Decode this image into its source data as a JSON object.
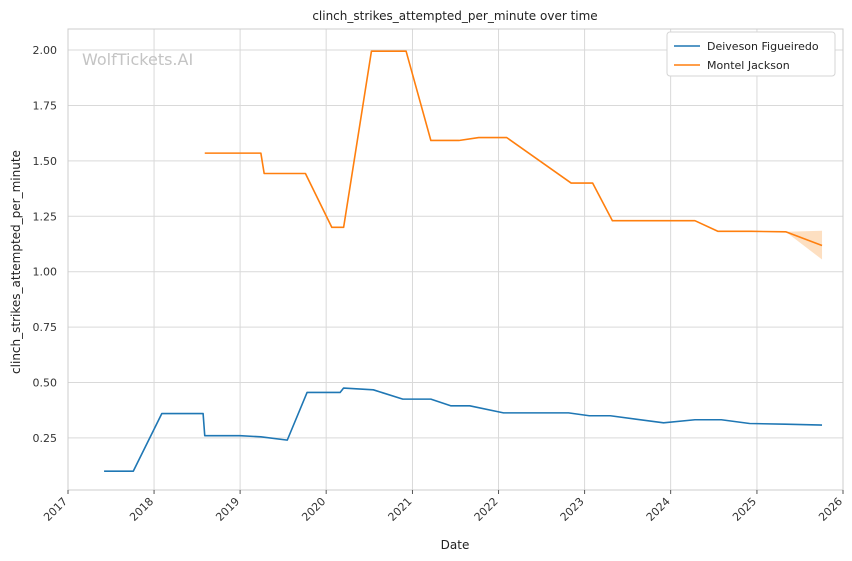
{
  "chart_data": {
    "type": "line",
    "title": "clinch_strikes_attempted_per_minute over time",
    "xlabel": "Date",
    "ylabel": "clinch_strikes_attempted_per_minute",
    "watermark": "WolfTickets.AI",
    "x_axis_kind": "date",
    "xlim": [
      "2017-01-01",
      "2026-01-01"
    ],
    "ylim": [
      0.015,
      2.095
    ],
    "x_ticks": [
      "2017",
      "2018",
      "2019",
      "2020",
      "2021",
      "2022",
      "2023",
      "2024",
      "2025",
      "2026"
    ],
    "y_ticks": [
      0.25,
      0.5,
      0.75,
      1.0,
      1.25,
      1.5,
      1.75,
      2.0
    ],
    "y_tick_labels": [
      "0.25",
      "0.50",
      "0.75",
      "1.00",
      "1.25",
      "1.50",
      "1.75",
      "2.00"
    ],
    "grid": true,
    "legend_position": "top-right",
    "series": [
      {
        "name": "Deiveson Figueiredo",
        "color": "#1f77b4",
        "points": [
          [
            "2017-06-03",
            0.1
          ],
          [
            "2017-10-05",
            0.1
          ],
          [
            "2018-02-03",
            0.36
          ],
          [
            "2018-07-28",
            0.36
          ],
          [
            "2018-08-04",
            0.26
          ],
          [
            "2019-01-01",
            0.26
          ],
          [
            "2019-03-30",
            0.255
          ],
          [
            "2019-07-20",
            0.24
          ],
          [
            "2019-10-12",
            0.455
          ],
          [
            "2020-02-29",
            0.455
          ],
          [
            "2020-03-15",
            0.475
          ],
          [
            "2020-07-19",
            0.467
          ],
          [
            "2020-11-21",
            0.425
          ],
          [
            "2021-03-20",
            0.425
          ],
          [
            "2021-06-12",
            0.395
          ],
          [
            "2021-09-01",
            0.395
          ],
          [
            "2022-01-22",
            0.363
          ],
          [
            "2022-10-25",
            0.363
          ],
          [
            "2023-01-21",
            0.35
          ],
          [
            "2023-04-20",
            0.35
          ],
          [
            "2023-12-02",
            0.318
          ],
          [
            "2024-04-13",
            0.332
          ],
          [
            "2024-08-03",
            0.332
          ],
          [
            "2024-12-01",
            0.315
          ],
          [
            "2025-05-01",
            0.312
          ],
          [
            "2025-10-04",
            0.308
          ]
        ]
      },
      {
        "name": "Montel Jackson",
        "color": "#ff7f0e",
        "band_color": "#fdd7b1",
        "points": [
          [
            "2018-08-04",
            1.535
          ],
          [
            "2019-03-30",
            1.535
          ],
          [
            "2019-04-13",
            1.443
          ],
          [
            "2019-10-05",
            1.443
          ],
          [
            "2020-01-25",
            1.2
          ],
          [
            "2020-03-15",
            1.2
          ],
          [
            "2020-07-11",
            1.995
          ],
          [
            "2020-12-05",
            1.995
          ],
          [
            "2021-03-20",
            1.592
          ],
          [
            "2021-07-17",
            1.592
          ],
          [
            "2021-10-09",
            1.605
          ],
          [
            "2022-02-05",
            1.605
          ],
          [
            "2022-11-05",
            1.4
          ],
          [
            "2023-02-04",
            1.4
          ],
          [
            "2023-04-29",
            1.23
          ],
          [
            "2024-04-13",
            1.23
          ],
          [
            "2024-07-20",
            1.182
          ],
          [
            "2024-12-07",
            1.182
          ],
          [
            "2025-05-03",
            1.18
          ],
          [
            "2025-10-04",
            1.118
          ]
        ],
        "band": [
          [
            "2025-05-03",
            1.18,
            1.18
          ],
          [
            "2025-10-04",
            1.055,
            1.185
          ]
        ]
      }
    ]
  }
}
